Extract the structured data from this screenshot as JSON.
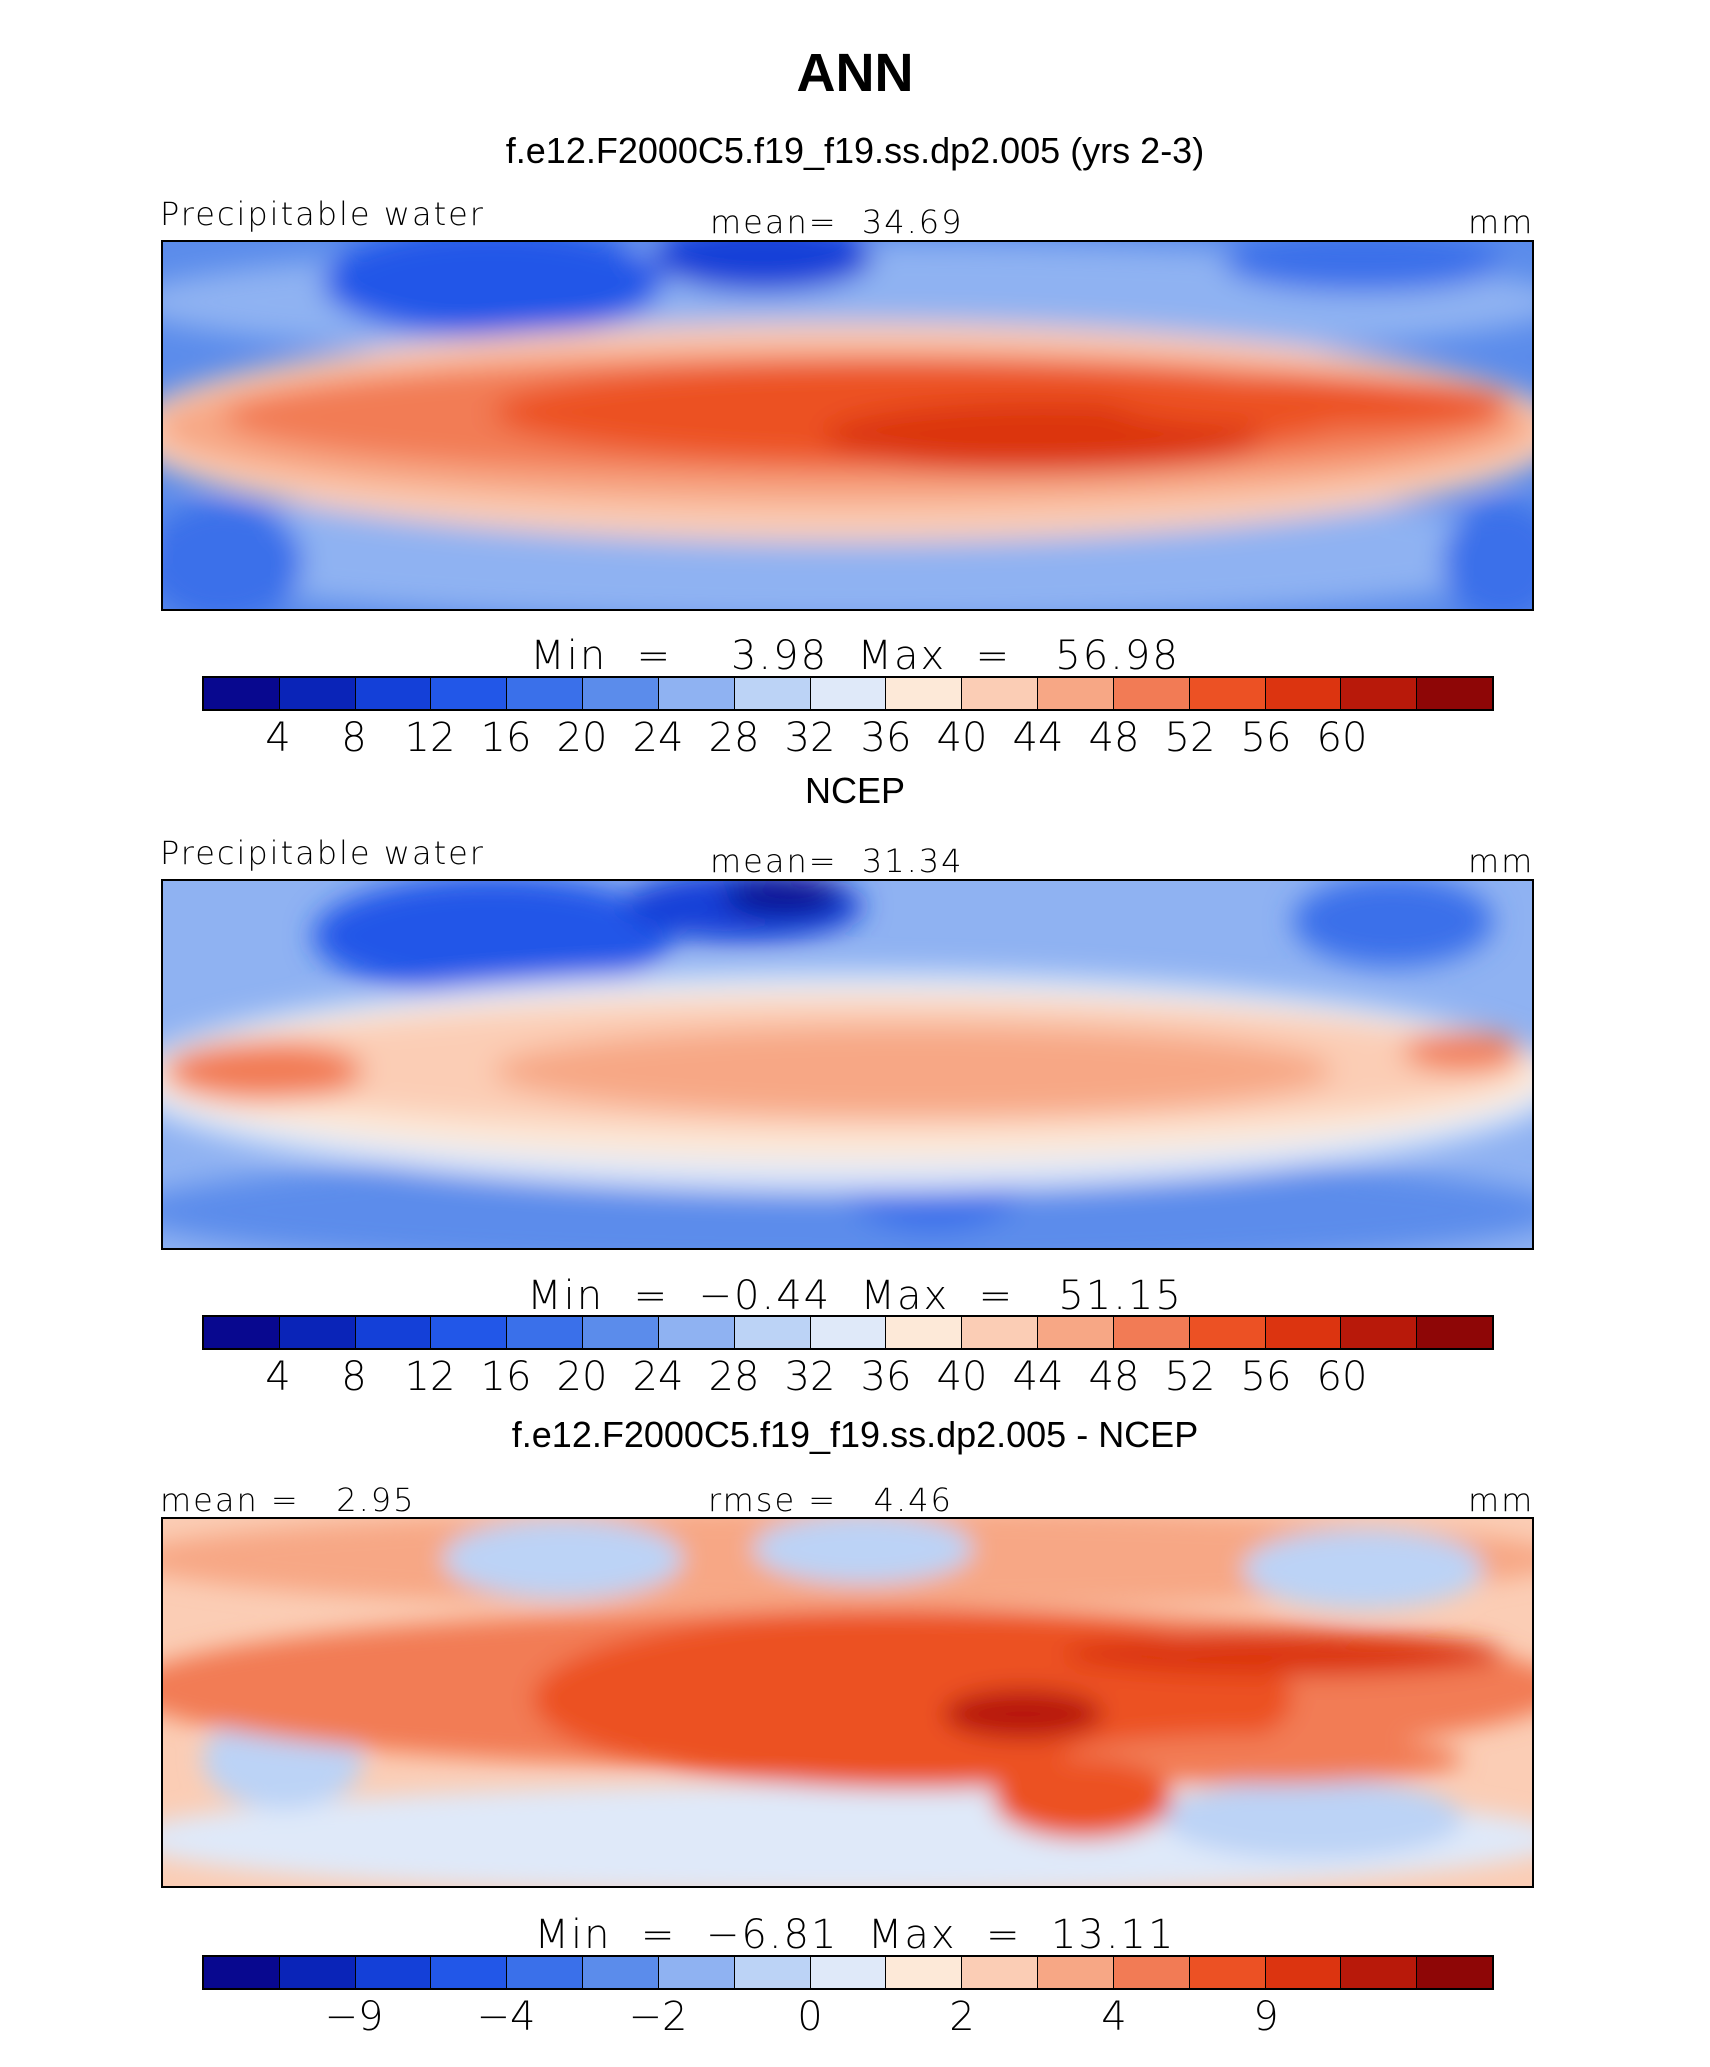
{
  "title": "ANN",
  "colors": [
    "#08088f",
    "#0a24b8",
    "#1440d8",
    "#2257e8",
    "#3a70ea",
    "#5b8ceb",
    "#8fb2f2",
    "#bcd3f6",
    "#dfe9f9",
    "#fde9d8",
    "#fbcdb5",
    "#f7a785",
    "#f27b55",
    "#ec5124",
    "#dc3410",
    "#b8190a",
    "#8e0606"
  ],
  "panels": [
    {
      "title": "f.e12.F2000C5.f19_f19.ss.dp2.005 (yrs 2-3)",
      "left_label": "Precipitable water",
      "center_label": "mean=  34.69",
      "right_label": "mm",
      "min_max": "Min  =    3.98  Max  =   56.98",
      "ticks": [
        "4",
        "8",
        "12",
        "16",
        "20",
        "24",
        "28",
        "32",
        "36",
        "40",
        "44",
        "48",
        "52",
        "56",
        "60"
      ]
    },
    {
      "title": "NCEP",
      "left_label": "Precipitable water",
      "center_label": "mean=  31.34",
      "right_label": "mm",
      "min_max": "Min  =  −0.44  Max  =   51.15",
      "ticks": [
        "4",
        "8",
        "12",
        "16",
        "20",
        "24",
        "28",
        "32",
        "36",
        "40",
        "44",
        "48",
        "52",
        "56",
        "60"
      ]
    },
    {
      "title": "f.e12.F2000C5.f19_f19.ss.dp2.005 - NCEP",
      "left_label": "mean =   2.95",
      "center_label": "rmse =   4.46",
      "right_label": "mm",
      "min_max": "Min  =  −6.81  Max  =  13.11",
      "ticks": [
        "−9",
        "−4",
        "−2",
        "0",
        "2",
        "4",
        "9"
      ]
    }
  ]
}
